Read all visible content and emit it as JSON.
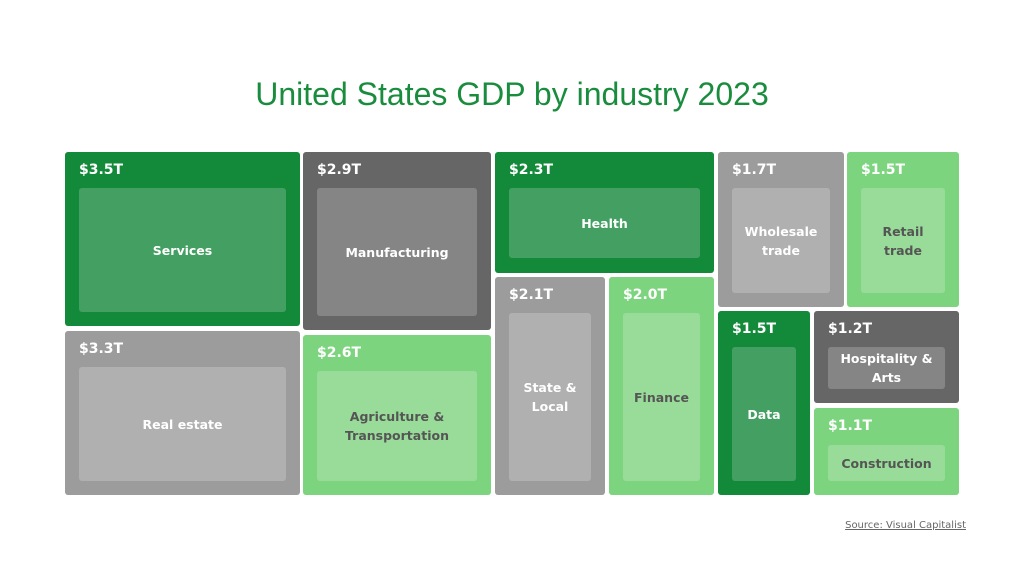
{
  "chart_data": {
    "type": "treemap",
    "title": "United States GDP by industry 2023",
    "unit": "trillion USD",
    "items": [
      {
        "label": "Services",
        "value_label": "$3.5T",
        "value": 3.5,
        "color": "#138a3a",
        "inner_color": "#43a062",
        "text_color": "#ffffff"
      },
      {
        "label": "Manufacturing",
        "value_label": "$2.9T",
        "value": 2.9,
        "color": "#666666",
        "inner_color": "#858585",
        "text_color": "#ffffff"
      },
      {
        "label": "Health",
        "value_label": "$2.3T",
        "value": 2.3,
        "color": "#138a3a",
        "inner_color": "#43a062",
        "text_color": "#ffffff"
      },
      {
        "label": "Wholesale trade",
        "value_label": "$1.7T",
        "value": 1.7,
        "color": "#9c9c9c",
        "inner_color": "#b0b0b0",
        "text_color": "#ffffff"
      },
      {
        "label": "Retail trade",
        "value_label": "$1.5T",
        "value": 1.5,
        "color": "#7dd47f",
        "inner_color": "#99dc99",
        "text_color": "#555555"
      },
      {
        "label": "Real estate",
        "value_label": "$3.3T",
        "value": 3.3,
        "color": "#9c9c9c",
        "inner_color": "#b0b0b0",
        "text_color": "#ffffff"
      },
      {
        "label": "Agriculture & Transportation",
        "value_label": "$2.6T",
        "value": 2.6,
        "color": "#7dd47f",
        "inner_color": "#99dc99",
        "text_color": "#555555"
      },
      {
        "label": "State & Local",
        "value_label": "$2.1T",
        "value": 2.1,
        "color": "#9c9c9c",
        "inner_color": "#b0b0b0",
        "text_color": "#ffffff"
      },
      {
        "label": "Finance",
        "value_label": "$2.0T",
        "value": 2.0,
        "color": "#7dd47f",
        "inner_color": "#99dc99",
        "text_color": "#555555"
      },
      {
        "label": "Data",
        "value_label": "$1.5T",
        "value": 1.5,
        "color": "#138a3a",
        "inner_color": "#43a062",
        "text_color": "#ffffff"
      },
      {
        "label": "Hospitality & Arts",
        "value_label": "$1.2T",
        "value": 1.2,
        "color": "#666666",
        "inner_color": "#858585",
        "text_color": "#ffffff"
      },
      {
        "label": "Construction",
        "value_label": "$1.1T",
        "value": 1.1,
        "color": "#7dd47f",
        "inner_color": "#99dc99",
        "text_color": "#555555"
      }
    ]
  },
  "source": "Source: Visual Capitalist"
}
